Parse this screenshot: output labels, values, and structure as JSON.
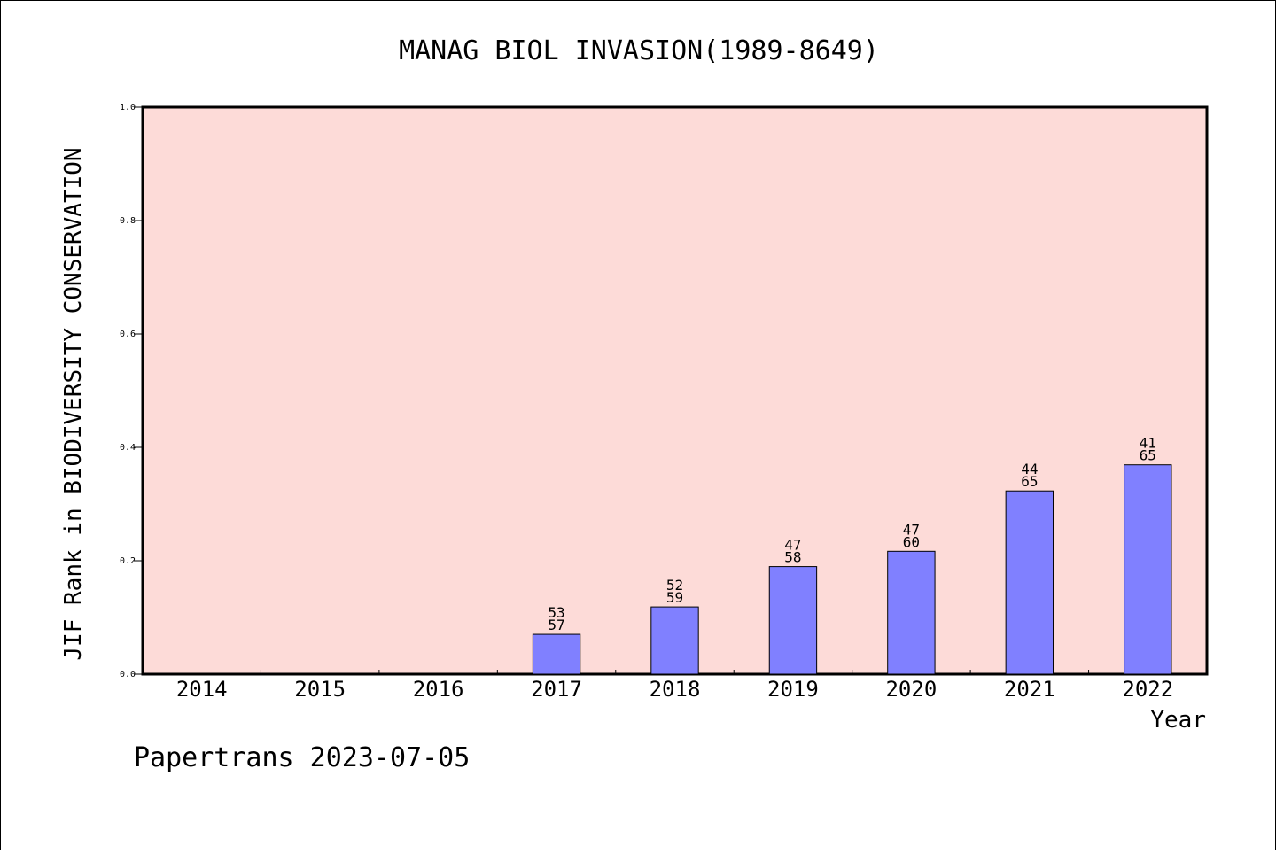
{
  "chart_data": {
    "type": "bar",
    "title": "MANAG BIOL INVASION(1989-8649)",
    "xlabel": "Year",
    "ylabel": "JIF Rank in BIODIVERSITY CONSERVATION",
    "ylim": [
      0,
      1.0
    ],
    "yticks": [
      "0.0",
      "0.2",
      "0.4",
      "0.6",
      "0.8",
      "1.0"
    ],
    "categories": [
      "2014",
      "2015",
      "2016",
      "2017",
      "2018",
      "2019",
      "2020",
      "2021",
      "2022"
    ],
    "values": [
      null,
      null,
      null,
      0.0702,
      0.1186,
      0.1897,
      0.2167,
      0.3231,
      0.3692
    ],
    "ranks": [
      null,
      null,
      null,
      "53",
      "52",
      "47",
      "47",
      "44",
      "41"
    ],
    "totals": [
      null,
      null,
      null,
      "57",
      "59",
      "58",
      "60",
      "65",
      "65"
    ],
    "grid": false,
    "colors": {
      "plot_background": "#fddbd8",
      "bar_fill": "#8080ff",
      "bar_stroke": "#000000"
    }
  },
  "footer": "Papertrans 2023-07-05"
}
